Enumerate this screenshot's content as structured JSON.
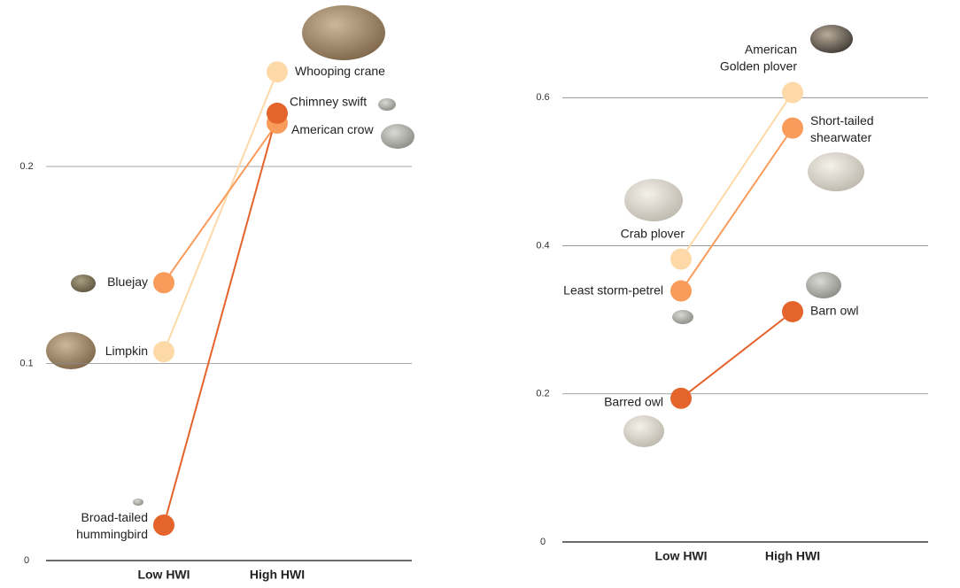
{
  "chart_data": [
    {
      "type": "slope",
      "categories": [
        "Low HWI",
        "High HWI"
      ],
      "ylim": [
        0,
        0.28
      ],
      "yticks": [
        0,
        0.1,
        0.2
      ],
      "series": [
        {
          "color": "#fdd9a8",
          "labels": [
            [
              "Limpkin"
            ],
            [
              "Whooping crane"
            ]
          ],
          "values": [
            0.106,
            0.248
          ]
        },
        {
          "color": "#f99b5a",
          "labels": [
            [
              "Bluejay"
            ],
            [
              "American crow"
            ]
          ],
          "values": [
            0.141,
            0.222
          ]
        },
        {
          "color": "#e5642b",
          "labels": [
            [
              "Broad-tailed",
              "hummingbird"
            ],
            [
              "Chimney swift"
            ]
          ],
          "values": [
            0.018,
            0.227
          ]
        }
      ]
    },
    {
      "type": "slope",
      "categories": [
        "Low HWI",
        "High HWI"
      ],
      "ylim": [
        0,
        0.72
      ],
      "yticks": [
        0,
        0.2,
        0.4,
        0.6
      ],
      "series": [
        {
          "color": "#fdd9a8",
          "labels": [
            [
              "Crab plover"
            ],
            [
              "American",
              "Golden plover"
            ]
          ],
          "values": [
            0.382,
            0.607
          ]
        },
        {
          "color": "#f99b5a",
          "labels": [
            [
              "Least storm-petrel"
            ],
            [
              "Short-tailed",
              "shearwater"
            ]
          ],
          "values": [
            0.339,
            0.559
          ]
        },
        {
          "color": "#e5642b",
          "labels": [
            [
              "Barred owl"
            ],
            [
              "Barn owl"
            ]
          ],
          "values": [
            0.194,
            0.311
          ]
        }
      ]
    }
  ]
}
